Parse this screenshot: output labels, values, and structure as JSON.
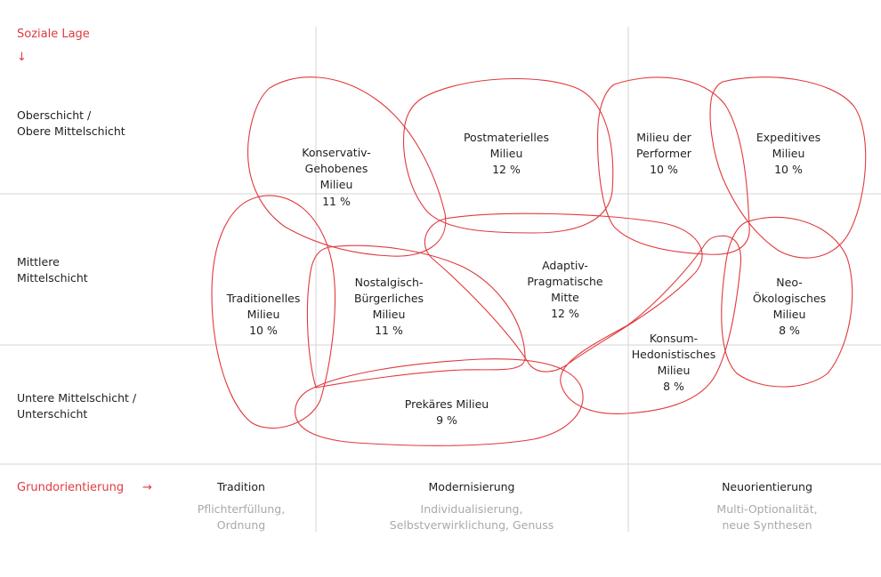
{
  "colors": {
    "accent": "#e03a3e",
    "text": "#1f1f1f",
    "muted": "#a9a9a9",
    "grid": "#d4d4d4"
  },
  "y_axis": {
    "title": "Soziale Lage",
    "arrow": "↓",
    "rows": [
      {
        "line1": "Oberschicht /",
        "line2": "Obere Mittelschicht"
      },
      {
        "line1": "Mittlere",
        "line2": "Mittelschicht"
      },
      {
        "line1": "Untere Mittelschicht /",
        "line2": "Unterschicht"
      }
    ]
  },
  "x_axis": {
    "title": "Grundorientierung",
    "arrow": "→",
    "columns": [
      {
        "heading": "Tradition",
        "sub1": "Pflichterfüllung,",
        "sub2": "Ordnung"
      },
      {
        "heading": "Modernisierung",
        "sub1": "Individualisierung,",
        "sub2": "Selbstverwirklichung, Genuss"
      },
      {
        "heading": "Neuorientierung",
        "sub1": "Multi-Optionalität,",
        "sub2": "neue Synthesen"
      }
    ]
  },
  "milieus": [
    {
      "id": "konservativ",
      "lines": [
        "Konservativ-",
        "Gehobenes",
        "Milieu"
      ],
      "share": "11 %"
    },
    {
      "id": "postmateriell",
      "lines": [
        "Postmaterielles",
        "Milieu"
      ],
      "share": "12 %"
    },
    {
      "id": "performer",
      "lines": [
        "Milieu der",
        "Performer"
      ],
      "share": "10 %"
    },
    {
      "id": "expeditiv",
      "lines": [
        "Expeditives",
        "Milieu"
      ],
      "share": "10 %"
    },
    {
      "id": "traditionell",
      "lines": [
        "Traditionelles",
        "Milieu"
      ],
      "share": "10 %"
    },
    {
      "id": "nostalgisch",
      "lines": [
        "Nostalgisch-",
        "Bürgerliches",
        "Milieu"
      ],
      "share": "11 %"
    },
    {
      "id": "adaptiv",
      "lines": [
        "Adaptiv-",
        "Pragmatische",
        "Mitte"
      ],
      "share": "12 %"
    },
    {
      "id": "neooeko",
      "lines": [
        "Neo-",
        "Ökologisches",
        "Milieu"
      ],
      "share": "8 %"
    },
    {
      "id": "konsum",
      "lines": [
        "Konsum-",
        "Hedonistisches",
        "Milieu"
      ],
      "share": "8 %"
    },
    {
      "id": "prekaer",
      "lines": [
        "Prekäres Milieu"
      ],
      "share": "9 %"
    }
  ]
}
